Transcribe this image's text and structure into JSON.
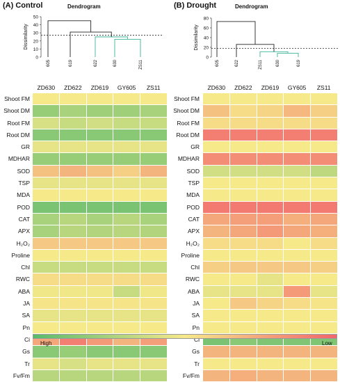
{
  "panels": [
    {
      "label": "(A) Control",
      "dendrogram_title": "Dendrogram",
      "ylabel": "Dissimilarity",
      "leaves": [
        "605",
        "619",
        "622",
        "630",
        "ZS11"
      ],
      "yticks": [
        "50",
        "40",
        "30",
        "20",
        "10",
        "0"
      ]
    },
    {
      "label": "(B) Drought",
      "dendrogram_title": "Dendrogram",
      "ylabel": "Dissimilarity",
      "leaves": [
        "605",
        "622",
        "ZS11",
        "630",
        "619"
      ],
      "yticks": [
        "80",
        "60",
        "40",
        "20",
        "0"
      ]
    }
  ],
  "legend": {
    "high": "High",
    "low": "Low"
  },
  "chart_data": [
    {
      "type": "heatmap",
      "title": "(A) Control",
      "columns": [
        "ZD630",
        "ZD622",
        "ZD619",
        "GY605",
        "ZS11"
      ],
      "rows": [
        "Shoot FM",
        "Shoot DM",
        "Root FM",
        "Root DM",
        "GR",
        "MDHAR",
        "SOD",
        "TSP",
        "MDA",
        "POD",
        "CAT",
        "APX",
        "H₂O₂",
        "Proline",
        "Chl",
        "RWC",
        "ABA",
        "JA",
        "SA",
        "Pn",
        "Ci",
        "Gs",
        "Tr",
        "Fv/Fm"
      ],
      "values": [
        [
          0.5,
          0.5,
          0.5,
          0.5,
          0.5
        ],
        [
          0.2,
          0.25,
          0.22,
          0.22,
          0.25
        ],
        [
          0.4,
          0.35,
          0.38,
          0.35,
          0.35
        ],
        [
          0.15,
          0.15,
          0.15,
          0.15,
          0.15
        ],
        [
          0.45,
          0.45,
          0.45,
          0.45,
          0.45
        ],
        [
          0.2,
          0.2,
          0.2,
          0.2,
          0.2
        ],
        [
          0.65,
          0.7,
          0.65,
          0.6,
          0.7
        ],
        [
          0.45,
          0.45,
          0.45,
          0.45,
          0.45
        ],
        [
          0.5,
          0.5,
          0.5,
          0.5,
          0.5
        ],
        [
          0.1,
          0.1,
          0.1,
          0.1,
          0.1
        ],
        [
          0.25,
          0.3,
          0.25,
          0.3,
          0.25
        ],
        [
          0.25,
          0.3,
          0.28,
          0.3,
          0.28
        ],
        [
          0.62,
          0.62,
          0.62,
          0.62,
          0.62
        ],
        [
          0.5,
          0.5,
          0.5,
          0.5,
          0.5
        ],
        [
          0.35,
          0.35,
          0.35,
          0.35,
          0.35
        ],
        [
          0.55,
          0.55,
          0.55,
          0.55,
          0.55
        ],
        [
          0.48,
          0.48,
          0.48,
          0.35,
          0.48
        ],
        [
          0.52,
          0.52,
          0.52,
          0.52,
          0.52
        ],
        [
          0.45,
          0.45,
          0.45,
          0.45,
          0.45
        ],
        [
          0.5,
          0.5,
          0.5,
          0.5,
          0.5
        ],
        [
          0.75,
          0.9,
          0.8,
          0.7,
          0.78
        ],
        [
          0.15,
          0.2,
          0.15,
          0.15,
          0.15
        ],
        [
          0.45,
          0.4,
          0.45,
          0.45,
          0.45
        ],
        [
          0.3,
          0.3,
          0.3,
          0.3,
          0.3
        ]
      ]
    },
    {
      "type": "heatmap",
      "title": "(B) Drought",
      "columns": [
        "ZD630",
        "ZD622",
        "ZD619",
        "GY605",
        "ZS11"
      ],
      "rows": [
        "Shoot FM",
        "Shoot DM",
        "Root FM",
        "Root DM",
        "GR",
        "MDHAR",
        "SOD",
        "TSP",
        "MDA",
        "POD",
        "CAT",
        "APX",
        "H₂O₂",
        "Proline",
        "Chl",
        "RWC",
        "ABA",
        "JA",
        "SA",
        "Pn",
        "Ci",
        "Gs",
        "Tr",
        "Fv/Fm"
      ],
      "values": [
        [
          0.5,
          0.5,
          0.5,
          0.5,
          0.5
        ],
        [
          0.65,
          0.55,
          0.58,
          0.68,
          0.6
        ],
        [
          0.55,
          0.55,
          0.55,
          0.55,
          0.55
        ],
        [
          0.9,
          0.9,
          0.9,
          0.9,
          0.9
        ],
        [
          0.5,
          0.5,
          0.5,
          0.5,
          0.5
        ],
        [
          0.85,
          0.85,
          0.85,
          0.85,
          0.85
        ],
        [
          0.38,
          0.38,
          0.38,
          0.38,
          0.32
        ],
        [
          0.5,
          0.5,
          0.5,
          0.5,
          0.5
        ],
        [
          0.5,
          0.5,
          0.5,
          0.5,
          0.5
        ],
        [
          0.92,
          0.92,
          0.92,
          0.92,
          0.92
        ],
        [
          0.75,
          0.78,
          0.78,
          0.72,
          0.75
        ],
        [
          0.7,
          0.75,
          0.8,
          0.75,
          0.72
        ],
        [
          0.55,
          0.55,
          0.55,
          0.5,
          0.55
        ],
        [
          0.5,
          0.5,
          0.5,
          0.5,
          0.5
        ],
        [
          0.6,
          0.62,
          0.62,
          0.62,
          0.6
        ],
        [
          0.5,
          0.5,
          0.45,
          0.5,
          0.5
        ],
        [
          0.45,
          0.45,
          0.45,
          0.8,
          0.45
        ],
        [
          0.5,
          0.62,
          0.58,
          0.55,
          0.52
        ],
        [
          0.5,
          0.5,
          0.5,
          0.5,
          0.5
        ],
        [
          0.5,
          0.5,
          0.5,
          0.5,
          0.5
        ],
        [
          0.1,
          0.15,
          0.12,
          0.12,
          0.12
        ],
        [
          0.7,
          0.7,
          0.7,
          0.7,
          0.7
        ],
        [
          0.5,
          0.5,
          0.5,
          0.5,
          0.5
        ],
        [
          0.7,
          0.72,
          0.7,
          0.7,
          0.7
        ]
      ]
    }
  ],
  "dendrograms": [
    {
      "panel": "A",
      "threshold": 27,
      "ymax": 50,
      "order": [
        "605",
        "619",
        "622",
        "630",
        "ZS11"
      ],
      "merges": [
        {
          "a": "630",
          "b": "ZS11",
          "height": 22,
          "cluster": "green"
        },
        {
          "a": "622",
          "b": "630+ZS11",
          "height": 25,
          "cluster": "green"
        },
        {
          "a": "619",
          "b": "622+630+ZS11",
          "height": 31,
          "cluster": "black"
        },
        {
          "a": "605",
          "b": "619+622+630+ZS11",
          "height": 45,
          "cluster": "black"
        }
      ]
    },
    {
      "panel": "B",
      "threshold": 18,
      "ymax": 80,
      "order": [
        "605",
        "622",
        "ZS11",
        "630",
        "619"
      ],
      "merges": [
        {
          "a": "630",
          "b": "619",
          "height": 8,
          "cluster": "green"
        },
        {
          "a": "ZS11",
          "b": "630+619",
          "height": 11,
          "cluster": "green"
        },
        {
          "a": "622",
          "b": "ZS11+630+619",
          "height": 26,
          "cluster": "black"
        },
        {
          "a": "605",
          "b": "622+ZS11+630+619",
          "height": 73,
          "cluster": "black"
        }
      ]
    }
  ],
  "colors": {
    "high": "#5aba6c",
    "mid": "#f6e98a",
    "low": "#f2656c",
    "cluster": "#3cb49a"
  }
}
